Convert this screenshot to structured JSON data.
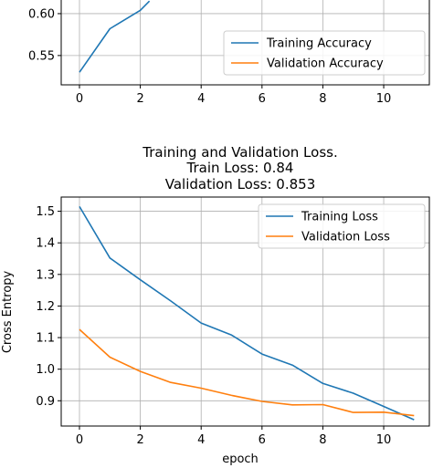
{
  "chart_data": [
    {
      "type": "line",
      "title": "",
      "xlabel": "",
      "ylabel": "",
      "xlim": [
        -0.6,
        11.5
      ],
      "ylim": [
        0.515,
        0.625
      ],
      "xticks": [
        "0",
        "2",
        "4",
        "6",
        "8",
        "10"
      ],
      "yticks": [
        "0.55",
        "0.60"
      ],
      "grid": true,
      "legend_position": "center-right",
      "series": [
        {
          "name": "Training Accuracy",
          "color": "#1f77b4",
          "x": [
            0,
            1,
            2,
            2.3
          ],
          "y": [
            0.53,
            0.582,
            0.604,
            0.615
          ]
        },
        {
          "name": "Validation Accuracy",
          "color": "#ff7f0e",
          "x": [],
          "y": []
        }
      ]
    },
    {
      "type": "line",
      "title": [
        "Training and Validation Loss.",
        "Train Loss: 0.84",
        "Validation Loss: 0.853"
      ],
      "xlabel": "epoch",
      "ylabel": "Cross Entropy",
      "xlim": [
        -0.6,
        11.5
      ],
      "ylim": [
        0.82,
        1.545
      ],
      "xticks": [
        "0",
        "2",
        "4",
        "6",
        "8",
        "10"
      ],
      "yticks": [
        "0.9",
        "1.0",
        "1.1",
        "1.2",
        "1.3",
        "1.4",
        "1.5"
      ],
      "grid": true,
      "legend_position": "top-right",
      "series": [
        {
          "name": "Training Loss",
          "color": "#1f77b4",
          "x": [
            0,
            1,
            2,
            3,
            4,
            5,
            6,
            7,
            8,
            9,
            10,
            11
          ],
          "y": [
            1.515,
            1.352,
            1.283,
            1.216,
            1.146,
            1.108,
            1.048,
            1.013,
            0.955,
            0.924,
            0.882,
            0.84
          ]
        },
        {
          "name": "Validation Loss",
          "color": "#ff7f0e",
          "x": [
            0,
            1,
            2,
            3,
            4,
            5,
            6,
            7,
            8,
            9,
            10,
            11
          ],
          "y": [
            1.126,
            1.038,
            0.993,
            0.958,
            0.94,
            0.917,
            0.898,
            0.887,
            0.888,
            0.863,
            0.864,
            0.853
          ]
        }
      ]
    }
  ]
}
